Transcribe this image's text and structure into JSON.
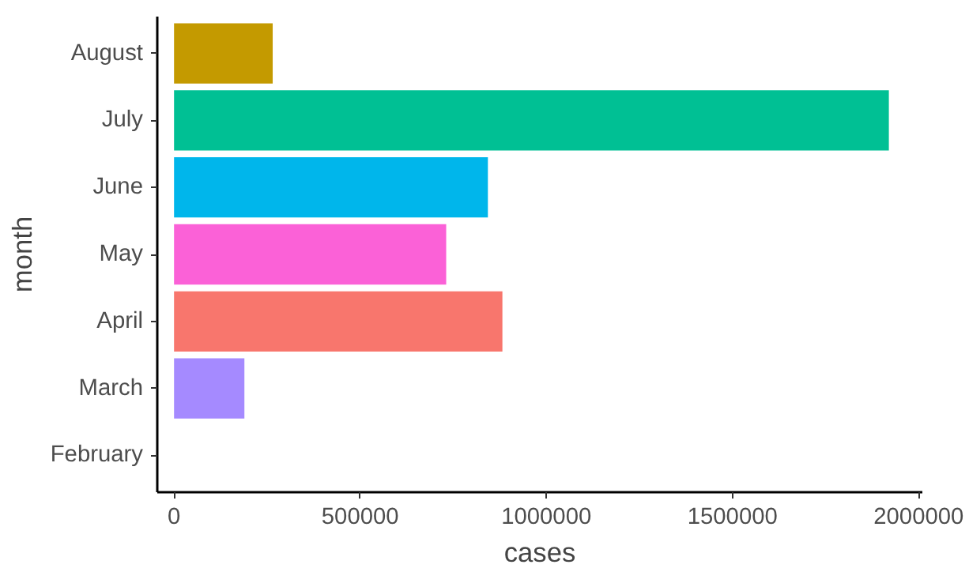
{
  "chart_data": {
    "type": "bar",
    "orientation": "horizontal",
    "categories": [
      "August",
      "July",
      "June",
      "May",
      "April",
      "March",
      "February"
    ],
    "values": [
      265000,
      1920000,
      843000,
      731000,
      882000,
      189000,
      0
    ],
    "colors": [
      "#c49a00",
      "#00c094",
      "#00b6eb",
      "#fb61d7",
      "#f8766d",
      "#a58aff",
      "#53b400"
    ],
    "xlabel": "cases",
    "ylabel": "month",
    "xlim": [
      -45000,
      2010000
    ],
    "xticks": [
      0,
      500000,
      1000000,
      1500000,
      2000000
    ],
    "grid": false
  }
}
